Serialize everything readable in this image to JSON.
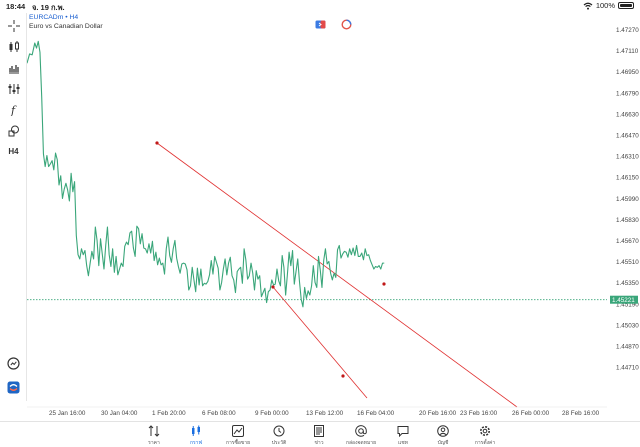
{
  "status": {
    "time": "18:44",
    "date": "จ. 19 ก.พ.",
    "battery": "100%"
  },
  "symbol": {
    "title": "EURCADm • H4",
    "subtitle": "Euro vs Canadian Dollar"
  },
  "price_axis": {
    "labels": [
      "1.47270",
      "1.47110",
      "1.46950",
      "1.46790",
      "1.46630",
      "1.46470",
      "1.46310",
      "1.46150",
      "1.45990",
      "1.45830",
      "1.45670",
      "1.45510",
      "1.45350",
      "1.45190",
      "1.45030",
      "1.44870",
      "1.44710"
    ],
    "current_price": "1.45221",
    "last_bid": "1.45221"
  },
  "time_axis": {
    "labels": [
      "25 Jan 16:00",
      "30 Jan 04:00",
      "1 Feb 20:00",
      "6 Feb 08:00",
      "9 Feb 00:00",
      "13 Feb 12:00",
      "16 Feb 04:00",
      "20 Feb 16:00",
      "23 Feb 16:00",
      "26 Feb 00:00",
      "28 Feb 16:00"
    ]
  },
  "toolbar": {
    "tools": [
      "crosshair-icon",
      "candles-icon",
      "bars-icon",
      "indicators-icon",
      "function-icon",
      "objects-icon",
      "timeframe-icon"
    ],
    "timeframe": "H4"
  },
  "colors": {
    "line": "#3aa67a",
    "trend": "#e03030",
    "accent": "#1a6fe0"
  },
  "nav": {
    "items": [
      {
        "label": "ราคา",
        "icon": "quotes-icon"
      },
      {
        "label": "กราฟ",
        "icon": "chart-icon",
        "active": true
      },
      {
        "label": "การซื้อขาย",
        "icon": "trade-icon"
      },
      {
        "label": "ประวัติ",
        "icon": "history-icon"
      },
      {
        "label": "ข่าว",
        "icon": "news-icon"
      },
      {
        "label": "กล่องจดหมาย",
        "icon": "mailbox-icon"
      },
      {
        "label": "แชท",
        "icon": "chat-icon"
      },
      {
        "label": "บัญชี",
        "icon": "account-icon"
      },
      {
        "label": "การตั้งค่า",
        "icon": "settings-icon"
      }
    ]
  }
}
